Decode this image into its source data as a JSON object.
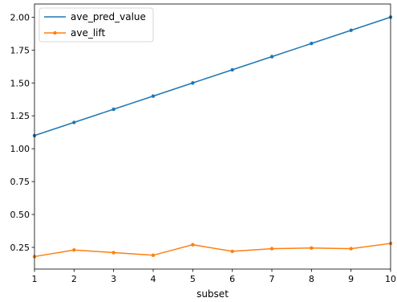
{
  "chart_data": {
    "type": "line",
    "title": "",
    "xlabel": "subset",
    "ylabel": "",
    "xlim": [
      1,
      10
    ],
    "ylim": [
      0.085,
      2.1
    ],
    "x": [
      1,
      2,
      3,
      4,
      5,
      6,
      7,
      8,
      9,
      10
    ],
    "x_ticks": [
      "1",
      "2",
      "3",
      "4",
      "5",
      "6",
      "7",
      "8",
      "9",
      "10"
    ],
    "y_ticks": [
      0.25,
      0.5,
      0.75,
      1.0,
      1.25,
      1.5,
      1.75,
      2.0
    ],
    "y_tick_labels": [
      "0.25",
      "0.50",
      "0.75",
      "1.00",
      "1.25",
      "1.50",
      "1.75",
      "2.00"
    ],
    "grid": false,
    "legend_position": "top-left",
    "series": [
      {
        "name": "ave_pred_value",
        "color": "#1f77b4",
        "marker": "dot",
        "values": [
          1.1,
          1.2,
          1.3,
          1.4,
          1.5,
          1.6,
          1.7,
          1.8,
          1.9,
          2.0
        ]
      },
      {
        "name": "ave_lift",
        "color": "#ff7f0e",
        "marker": "dot",
        "values": [
          0.18,
          0.23,
          0.21,
          0.19,
          0.27,
          0.22,
          0.24,
          0.245,
          0.24,
          0.28
        ]
      }
    ]
  }
}
